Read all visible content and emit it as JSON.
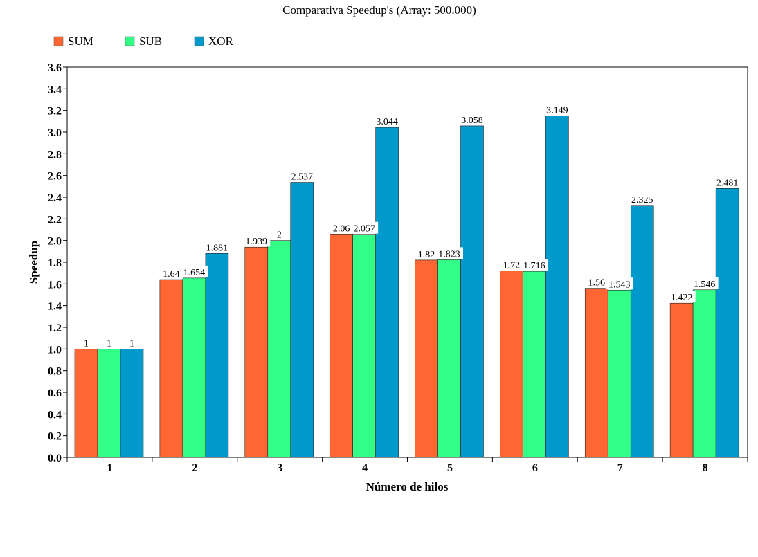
{
  "chart_data": {
    "type": "bar",
    "title": "Comparativa Speedup's (Array: 500.000)",
    "xlabel": "Número de hilos",
    "ylabel": "Speedup",
    "categories": [
      "1",
      "2",
      "3",
      "4",
      "5",
      "6",
      "7",
      "8"
    ],
    "series": [
      {
        "name": "SUM",
        "color": "#ff6633",
        "values": [
          1,
          1.64,
          1.939,
          2.06,
          1.82,
          1.72,
          1.56,
          1.422
        ],
        "value_labels": [
          "1",
          "1.64",
          "1.939",
          "2.06",
          "1.82",
          "1.72",
          "1.56",
          "1.422"
        ]
      },
      {
        "name": "SUB",
        "color": "#33ff88",
        "values": [
          1,
          1.654,
          2,
          2.057,
          1.823,
          1.716,
          1.543,
          1.546
        ],
        "value_labels": [
          "1",
          "1.654",
          "2",
          "2.057",
          "1.823",
          "1.716",
          "1.543",
          "1.546"
        ]
      },
      {
        "name": "XOR",
        "color": "#0099cc",
        "values": [
          1,
          1.881,
          2.537,
          3.044,
          3.058,
          3.149,
          2.325,
          2.481
        ],
        "value_labels": [
          "1",
          "1.881",
          "2.537",
          "3.044",
          "3.058",
          "3.149",
          "2.325",
          "2.481"
        ]
      }
    ],
    "ylim": [
      0,
      3.6
    ],
    "yticks": [
      "0.0",
      "0.2",
      "0.4",
      "0.6",
      "0.8",
      "1.0",
      "1.2",
      "1.4",
      "1.6",
      "1.8",
      "2.0",
      "2.2",
      "2.4",
      "2.6",
      "2.8",
      "3.0",
      "3.2",
      "3.4",
      "3.6"
    ],
    "grid": false,
    "legend_position": "top-left"
  }
}
